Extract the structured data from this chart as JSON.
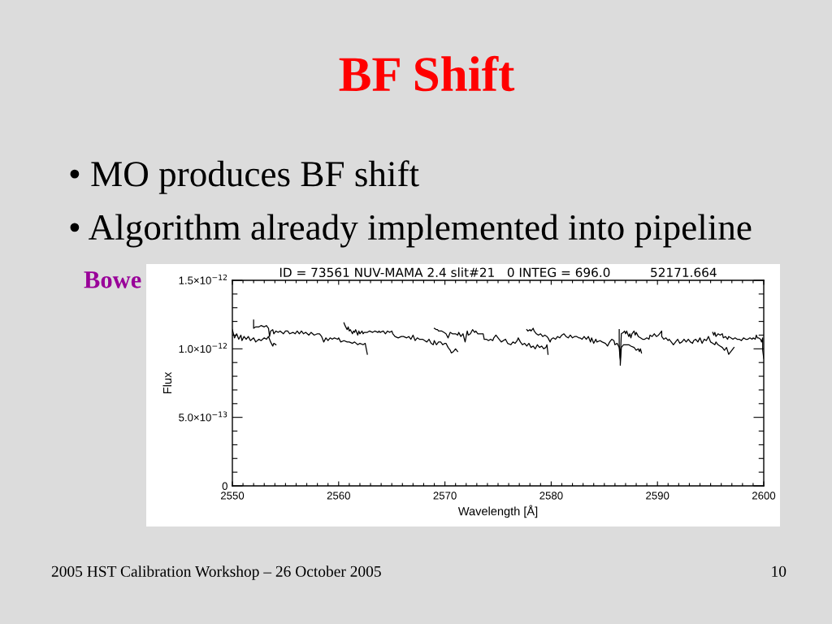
{
  "chart_data": {
    "type": "line",
    "title": "BF Shift",
    "subtitle": "ID = 73561 NUV-MAMA 2.4 slit#21   0 INTEG = 696.0          52171.664",
    "xlabel": "Wavelength [Å]",
    "ylabel": "Flux",
    "xlim": [
      2550,
      2600
    ],
    "ylim": [
      0,
      1.5e-12
    ],
    "xticks": [
      2550,
      {
        "value": 2551,
        "label": null
      },
      {
        "value": 2552,
        "label": null
      },
      {
        "value": 2553,
        "label": null
      },
      {
        "value": 2554,
        "label": null
      },
      {
        "value": 2555,
        "label": null
      },
      {
        "value": 2556,
        "label": null
      },
      {
        "value": 2557,
        "label": null
      },
      {
        "value": 2558,
        "label": null
      },
      {
        "value": 2559,
        "label": null
      },
      2560,
      {
        "value": 2561,
        "label": null
      },
      {
        "value": 2562,
        "label": null
      },
      {
        "value": 2563,
        "label": null
      },
      {
        "value": 2564,
        "label": null
      },
      {
        "value": 2565,
        "label": null
      },
      {
        "value": 2566,
        "label": null
      },
      {
        "value": 2567,
        "label": null
      },
      {
        "value": 2568,
        "label": null
      },
      {
        "value": 2569,
        "label": null
      },
      2570,
      {
        "value": 2571,
        "label": null
      },
      {
        "value": 2572,
        "label": null
      },
      {
        "value": 2573,
        "label": null
      },
      {
        "value": 2574,
        "label": null
      },
      {
        "value": 2575,
        "label": null
      },
      {
        "value": 2576,
        "label": null
      },
      {
        "value": 2577,
        "label": null
      },
      {
        "value": 2578,
        "label": null
      },
      {
        "value": 2579,
        "label": null
      },
      2580,
      {
        "value": 2581,
        "label": null
      },
      {
        "value": 2582,
        "label": null
      },
      {
        "value": 2583,
        "label": null
      },
      {
        "value": 2584,
        "label": null
      },
      {
        "value": 2585,
        "label": null
      },
      {
        "value": 2586,
        "label": null
      },
      {
        "value": 2587,
        "label": null
      },
      {
        "value": 2588,
        "label": null
      },
      {
        "value": 2589,
        "label": null
      },
      2590,
      {
        "value": 2591,
        "label": null
      },
      {
        "value": 2592,
        "label": null
      },
      {
        "value": 2593,
        "label": null
      },
      {
        "value": 2594,
        "label": null
      },
      {
        "value": 2595,
        "label": null
      },
      {
        "value": 2596,
        "label": null
      },
      {
        "value": 2597,
        "label": null
      },
      {
        "value": 2598,
        "label": null
      },
      {
        "value": 2599,
        "label": null
      },
      2600
    ],
    "yticks": [
      0,
      {
        "value": 1e-13,
        "label": null
      },
      {
        "value": 2e-13,
        "label": null
      },
      {
        "value": 3e-13,
        "label": null
      },
      {
        "value": 4e-13,
        "label": null
      },
      {
        "value": 5e-13,
        "label": "5.0×10$^{−13}$"
      },
      {
        "value": 6e-13,
        "label": null
      },
      {
        "value": 7e-13,
        "label": null
      },
      {
        "value": 8e-13,
        "label": null
      },
      {
        "value": 9e-13,
        "label": null
      },
      {
        "value": 1e-12,
        "label": "1.0×10$^{−12}$"
      },
      {
        "value": 1.1e-12,
        "label": null
      },
      {
        "value": 1.2e-12,
        "label": null
      },
      {
        "value": 1.3e-12,
        "label": null
      },
      {
        "value": 1.4e-12,
        "label": null
      },
      {
        "value": 1.5e-12,
        "label": "1.5×10$^{−12}$"
      }
    ],
    "series": [
      {
        "color": "#000000",
        "x": [
          2550.0,
          2550.2,
          2550.4,
          2550.6,
          2550.8,
          2550.9,
          2551.1,
          2551.3,
          2551.5,
          2551.7,
          2552.0,
          2552.2,
          2552.5,
          2552.7,
          2553.0,
          2553.2,
          2553.4,
          2553.6,
          2553.8,
          2553.9,
          2554.1
        ],
        "values": [
          1.14e-12,
          1.08e-12,
          1.11e-12,
          1.07e-12,
          1.1e-12,
          1.06e-12,
          1.09e-12,
          1.07e-12,
          1.09e-12,
          1.06e-12,
          1.08e-12,
          1.05e-12,
          1.07e-12,
          1.06e-12,
          1.08e-12,
          1.07e-12,
          1.09e-12,
          1.05e-12,
          1.02e-12,
          1.04e-12,
          1.03e-12
        ]
      },
      {
        "color": "#000000",
        "x": [
          2552.0,
          2552.0,
          2552.2,
          2552.5,
          2552.7,
          2553.0,
          2553.2,
          2553.4,
          2553.5,
          2553.6,
          2553.8,
          2553.9,
          2554.1,
          2554.3,
          2554.5,
          2554.8,
          2555.0,
          2555.2,
          2555.4,
          2555.7,
          2555.9,
          2556.1,
          2556.3,
          2556.5,
          2556.7,
          2556.9,
          2557.2,
          2557.4,
          2557.7,
          2558.0,
          2558.2,
          2558.4,
          2558.6,
          2558.8,
          2559.0,
          2559.2,
          2559.4,
          2559.6,
          2559.9,
          2560.0,
          2560.2,
          2560.5,
          2560.8,
          2561.0,
          2561.3,
          2561.5,
          2561.8,
          2562.0,
          2562.3,
          2562.5,
          2562.6,
          2562.7
        ],
        "values": [
          1.21e-12,
          1.15e-12,
          1.16e-12,
          1.16e-12,
          1.17e-12,
          1.16e-12,
          1.17e-12,
          1.15e-12,
          1.09e-12,
          1.13e-12,
          1.14e-12,
          1.11e-12,
          1.13e-12,
          1.12e-12,
          1.13e-12,
          1.11e-12,
          1.13e-12,
          1.13e-12,
          1.11e-12,
          1.12e-12,
          1.11e-12,
          1.13e-12,
          1.11e-12,
          1.13e-12,
          1.11e-12,
          1.12e-12,
          1.1e-12,
          1.12e-12,
          1.1e-12,
          1.11e-12,
          1.11e-12,
          1.09e-12,
          1.05e-12,
          1.08e-12,
          1.06e-12,
          1.08e-12,
          1.07e-12,
          1.08e-12,
          1.07e-12,
          1.08e-12,
          1.05e-12,
          1.06e-12,
          1.05e-12,
          1.05e-12,
          1.04e-12,
          1.05e-12,
          1.03e-12,
          1.04e-12,
          1.03e-12,
          1.04e-12,
          1e-12,
          9.6e-13
        ]
      },
      {
        "color": "#000000",
        "x": [
          2560.5,
          2560.6,
          2560.8,
          2560.9,
          2561.0,
          2561.1,
          2561.3,
          2561.4,
          2561.5,
          2561.6,
          2561.8,
          2561.9,
          2562.0,
          2562.2,
          2562.3,
          2562.4,
          2562.7,
          2562.9,
          2563.2,
          2563.4,
          2563.7,
          2563.8,
          2563.9,
          2564.2,
          2564.4,
          2564.6,
          2564.8,
          2565.0,
          2565.1,
          2565.3,
          2565.6,
          2565.9,
          2566.1,
          2566.4,
          2566.6,
          2566.8,
          2567.0,
          2567.2,
          2567.4,
          2567.6,
          2567.9,
          2568.1,
          2568.3,
          2568.5,
          2568.7,
          2568.9,
          2569.0,
          2569.2,
          2569.4,
          2569.6,
          2569.8,
          2570.0,
          2570.1,
          2570.3,
          2570.5,
          2570.6,
          2570.8,
          2571.0,
          2571.2
        ],
        "values": [
          1.19e-12,
          1.17e-12,
          1.14e-12,
          1.16e-12,
          1.13e-12,
          1.14e-12,
          1.11e-12,
          1.13e-12,
          1.12e-12,
          1.14e-12,
          1.1e-12,
          1.13e-12,
          1.11e-12,
          1.13e-12,
          1.11e-12,
          1.12e-12,
          1.12e-12,
          1.13e-12,
          1.12e-12,
          1.13e-12,
          1.12e-12,
          1.13e-12,
          1.12e-12,
          1.13e-12,
          1.11e-12,
          1.13e-12,
          1.12e-12,
          1.13e-12,
          1.11e-12,
          1.09e-12,
          1.08e-12,
          1.09e-12,
          1.09e-12,
          1.08e-12,
          1.09e-12,
          1.07e-12,
          1.1e-12,
          1.06e-12,
          1.08e-12,
          1.07e-12,
          1.07e-12,
          1.06e-12,
          1.05e-12,
          1.07e-12,
          1.04e-12,
          1.03e-12,
          1.06e-12,
          1.03e-12,
          1.05e-12,
          1.05e-12,
          1.03e-12,
          1.04e-12,
          1.04e-12,
          1.01e-12,
          9.9e-13,
          9.7e-13,
          9.8e-13,
          1e-12,
          9.8e-13
        ]
      },
      {
        "color": "#000000",
        "x": [
          2569.0,
          2569.2,
          2569.3,
          2569.4,
          2569.7,
          2569.9,
          2570.1,
          2570.3,
          2570.5,
          2570.7,
          2571.0,
          2571.2,
          2571.3,
          2571.5,
          2571.7,
          2571.9,
          2572.1,
          2572.2,
          2572.4,
          2572.6,
          2572.8,
          2572.9,
          2573.1,
          2573.4,
          2573.6,
          2573.7,
          2573.9,
          2574.1,
          2574.3,
          2574.5,
          2574.6,
          2574.8,
          2575.0,
          2575.3,
          2575.7,
          2575.9,
          2576.2,
          2576.4,
          2576.6,
          2576.8,
          2576.9,
          2577.1,
          2577.3,
          2577.5,
          2577.7,
          2577.9,
          2578.1,
          2578.3,
          2578.5,
          2578.7,
          2578.9,
          2579.1,
          2579.3,
          2579.5,
          2579.6,
          2579.7
        ],
        "values": [
          1.15e-12,
          1.14e-12,
          1.14e-12,
          1.13e-12,
          1.13e-12,
          1.12e-12,
          1.11e-12,
          1.08e-12,
          1.12e-12,
          1.11e-12,
          1.11e-12,
          1.1e-12,
          1.12e-12,
          1.09e-12,
          1.11e-12,
          1.05e-12,
          1.13e-12,
          1.1e-12,
          1.11e-12,
          1.14e-12,
          1.12e-12,
          1.13e-12,
          1.11e-12,
          1.11e-12,
          1.11e-12,
          1.07e-12,
          1.07e-12,
          1.06e-12,
          1.07e-12,
          1.06e-12,
          1.08e-12,
          1.1e-12,
          1.08e-12,
          1.05e-12,
          1.07e-12,
          1.04e-12,
          1.03e-12,
          1.05e-12,
          1.04e-12,
          1.06e-12,
          1.08e-12,
          1.05e-12,
          1.03e-12,
          1.04e-12,
          1.02e-12,
          1.04e-12,
          1.01e-12,
          1.02e-12,
          1e-12,
          1.03e-12,
          1.01e-12,
          1.02e-12,
          1e-12,
          1.01e-12,
          1.03e-12,
          9.6e-13
        ]
      },
      {
        "color": "#000000",
        "x": [
          2577.7,
          2577.8,
          2578.0,
          2578.1,
          2578.3,
          2578.4,
          2578.6,
          2578.8,
          2579.0,
          2579.2,
          2579.4,
          2579.6,
          2579.7,
          2579.9,
          2580.0,
          2580.2,
          2580.4,
          2580.6,
          2580.8,
          2581.0,
          2581.2,
          2581.4,
          2581.6,
          2581.8,
          2582.0,
          2582.2,
          2582.4,
          2582.6,
          2582.7,
          2582.9,
          2583.1,
          2583.3,
          2583.5,
          2583.7,
          2583.8,
          2584.0,
          2584.2,
          2584.3,
          2584.6,
          2584.8,
          2585.1,
          2585.3,
          2585.5,
          2585.7,
          2585.9,
          2586.0,
          2586.2,
          2586.4,
          2586.5,
          2586.5,
          2586.6,
          2586.8,
          2587.0,
          2587.3,
          2587.5,
          2587.8,
          2588.0,
          2588.2,
          2588.3,
          2588.4,
          2588.5
        ],
        "values": [
          1.14e-12,
          1.13e-12,
          1.14e-12,
          1.13e-12,
          1.15e-12,
          1.13e-12,
          1.11e-12,
          1.1e-12,
          1.11e-12,
          1.09e-12,
          1.1e-12,
          1.09e-12,
          1.08e-12,
          1.05e-12,
          1.07e-12,
          1.08e-12,
          1.07e-12,
          1.09e-12,
          1.08e-12,
          1.1e-12,
          1.11e-12,
          1.09e-12,
          1.08e-12,
          1.1e-12,
          1.08e-12,
          1.09e-12,
          1.09e-12,
          1.08e-12,
          1.08e-12,
          1.07e-12,
          1.09e-12,
          1.07e-12,
          1.09e-12,
          1.05e-12,
          1.08e-12,
          1.04e-12,
          1.07e-12,
          1.05e-12,
          1.06e-12,
          1.05e-12,
          1.04e-12,
          1.02e-12,
          1.05e-12,
          1.07e-12,
          1.06e-12,
          1.03e-12,
          1.04e-12,
          1.01e-12,
          9.1e-13,
          8.8e-13,
          1.01e-12,
          1.03e-12,
          1.03e-12,
          1.03e-12,
          1.02e-12,
          1.01e-12,
          9.9e-13,
          1e-12,
          9.8e-13,
          1e-12,
          9.7e-13
        ]
      },
      {
        "color": "#000000",
        "x": [
          2586.4,
          2586.4,
          2586.5,
          2586.6,
          2586.8,
          2586.9,
          2587.0,
          2587.1,
          2587.3,
          2587.4,
          2587.5,
          2587.6,
          2587.8,
          2587.9,
          2588.0,
          2588.2,
          2588.4,
          2588.6,
          2588.8,
          2589.0,
          2589.2,
          2589.3,
          2589.5,
          2589.7,
          2589.9,
          2590.1,
          2590.3,
          2590.4,
          2590.4,
          2590.6,
          2590.8,
          2591.0,
          2591.1,
          2591.3,
          2591.5,
          2591.7,
          2591.9,
          2592.1,
          2592.3,
          2592.5,
          2592.7,
          2592.9,
          2593.1,
          2593.3,
          2593.4,
          2593.6,
          2593.8,
          2594.0,
          2594.2,
          2594.4,
          2594.6,
          2594.8,
          2595.0,
          2595.2,
          2595.4,
          2595.5,
          2595.7,
          2595.9,
          2596.1,
          2596.3,
          2596.5,
          2596.7,
          2596.8,
          2597.0,
          2597.2
        ],
        "values": [
          1.14e-12,
          1.03e-12,
          9.3e-13,
          1.11e-12,
          1.12e-12,
          1.13e-12,
          1.11e-12,
          1.13e-12,
          1.09e-12,
          1.11e-12,
          1.08e-12,
          1.11e-12,
          1.13e-12,
          1.1e-12,
          1.12e-12,
          1.09e-12,
          1.08e-12,
          1.07e-12,
          1.07e-12,
          1.08e-12,
          1.07e-12,
          1.1e-12,
          1.09e-12,
          1.11e-12,
          1.09e-12,
          1.1e-12,
          1.12e-12,
          1.13e-12,
          1.09e-12,
          1.07e-12,
          1.08e-12,
          1.06e-12,
          1.07e-12,
          1.05e-12,
          1.03e-12,
          1.05e-12,
          1.07e-12,
          1.04e-12,
          1.05e-12,
          1.07e-12,
          1.05e-12,
          1.07e-12,
          1.05e-12,
          1.04e-12,
          1.06e-12,
          1.07e-12,
          1.05e-12,
          1.08e-12,
          1.04e-12,
          1.07e-12,
          1.06e-12,
          1.09e-12,
          1.05e-12,
          1.04e-12,
          1.03e-12,
          1.05e-12,
          1.03e-12,
          1.02e-12,
          1.01e-12,
          9.9e-13,
          1.01e-12,
          9.6e-13,
          9.7e-13,
          9.9e-13,
          1.01e-12
        ]
      },
      {
        "color": "#000000",
        "x": [
          2595.2,
          2595.3,
          2595.4,
          2595.5,
          2595.7,
          2595.9,
          2596.1,
          2596.2,
          2596.4,
          2596.6,
          2596.7,
          2596.9,
          2597.1,
          2597.3,
          2597.5,
          2597.7,
          2597.9,
          2598.1,
          2598.3,
          2598.5,
          2598.7,
          2598.9,
          2599.0,
          2599.2,
          2599.3,
          2599.4,
          2599.5,
          2599.7,
          2599.8,
          2599.9,
          2599.9,
          2600.0
        ],
        "values": [
          1.12e-12,
          1.1e-12,
          1.12e-12,
          1.09e-12,
          1.11e-12,
          1.1e-12,
          1.11e-12,
          1.08e-12,
          1.09e-12,
          1.07e-12,
          1.09e-12,
          1.08e-12,
          1.07e-12,
          1.08e-12,
          1.07e-12,
          1.07e-12,
          1.06e-12,
          1.08e-12,
          1.07e-12,
          1.07e-12,
          1.08e-12,
          1.07e-12,
          1.08e-12,
          1.07e-12,
          1.1e-12,
          1.08e-12,
          1.08e-12,
          1.07e-12,
          1.05e-12,
          1.08e-12,
          9.9e-13,
          9.3e-13
        ]
      }
    ],
    "annotations": [
      "• MO produces BF shift",
      "• Algorithm already implemented into pipeline",
      "Bowe",
      "2005 HST Calibration Workshop – 26 October 2005",
      "10"
    ]
  }
}
